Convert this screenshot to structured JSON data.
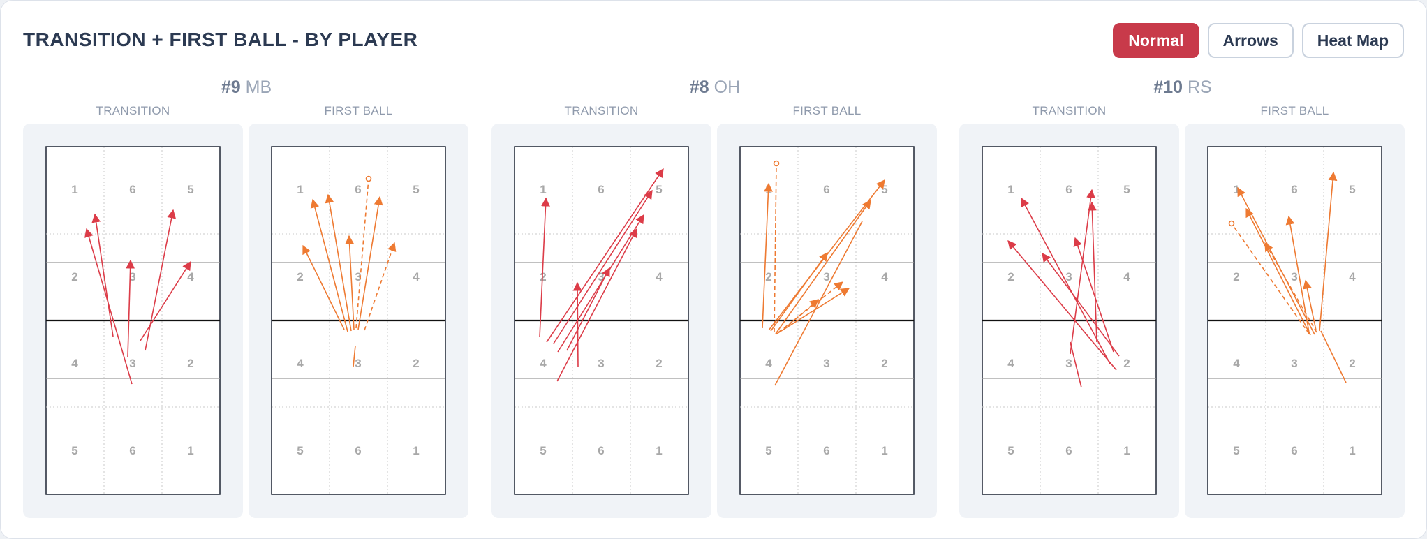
{
  "title": "TRANSITION + FIRST BALL - BY PLAYER",
  "view_toggle": {
    "options": [
      "Normal",
      "Arrows",
      "Heat Map"
    ],
    "active": "Normal",
    "active_color": "#c83a4a"
  },
  "colors": {
    "transition": "#dc3c48",
    "first_ball": "#ee7a32"
  },
  "court_zones": {
    "back_top": [
      "1",
      "6",
      "5"
    ],
    "front_top": [
      "2",
      "3",
      "4"
    ],
    "front_bottom": [
      "4",
      "3",
      "2"
    ],
    "back_bottom": [
      "5",
      "6",
      "1"
    ]
  },
  "players": [
    {
      "number": "#9",
      "position": "MB",
      "panels": [
        {
          "label": "TRANSITION",
          "type": "transition",
          "shots": [
            {
              "from": [
                123,
                340
              ],
              "to": [
                58,
                118
              ],
              "style": "solid",
              "end": "arrow"
            },
            {
              "from": [
                96,
                272
              ],
              "to": [
                70,
                97
              ],
              "style": "solid",
              "end": "arrow"
            },
            {
              "from": [
                117,
                301
              ],
              "to": [
                121,
                163
              ],
              "style": "solid",
              "end": "arrow"
            },
            {
              "from": [
                142,
                292
              ],
              "to": [
                182,
                91
              ],
              "style": "solid",
              "end": "arrow"
            },
            {
              "from": [
                135,
                278
              ],
              "to": [
                207,
                165
              ],
              "style": "solid",
              "end": "arrow"
            }
          ]
        },
        {
          "label": "FIRST BALL",
          "type": "first_ball",
          "shots": [
            {
              "from": [
                104,
                262
              ],
              "to": [
                45,
                142
              ],
              "style": "solid",
              "end": "arrow"
            },
            {
              "from": [
                109,
                265
              ],
              "to": [
                59,
                76
              ],
              "style": "solid",
              "end": "arrow"
            },
            {
              "from": [
                114,
                264
              ],
              "to": [
                81,
                69
              ],
              "style": "solid",
              "end": "arrow"
            },
            {
              "from": [
                118,
                262
              ],
              "to": [
                111,
                128
              ],
              "style": "solid",
              "end": "arrow"
            },
            {
              "from": [
                124,
                262
              ],
              "to": [
                155,
                72
              ],
              "style": "solid",
              "end": "arrow"
            },
            {
              "from": [
                133,
                263
              ],
              "to": [
                176,
                138
              ],
              "style": "dashed",
              "end": "arrow"
            },
            {
              "from": [
                121,
                260
              ],
              "to": [
                139,
                46
              ],
              "style": "dashed",
              "end": "circle"
            },
            {
              "from": [
                120,
                285
              ],
              "to": [
                117,
                315
              ],
              "style": "solid",
              "end": "none"
            }
          ]
        }
      ]
    },
    {
      "number": "#8",
      "position": "OH",
      "panels": [
        {
          "label": "TRANSITION",
          "type": "transition",
          "shots": [
            {
              "from": [
                36,
                273
              ],
              "to": [
                45,
                74
              ],
              "style": "solid",
              "end": "arrow"
            },
            {
              "from": [
                46,
                280
              ],
              "to": [
                213,
                32
              ],
              "style": "solid",
              "end": "arrow"
            },
            {
              "from": [
                56,
                282
              ],
              "to": [
                197,
                63
              ],
              "style": "solid",
              "end": "arrow"
            },
            {
              "from": [
                62,
                294
              ],
              "to": [
                185,
                98
              ],
              "style": "solid",
              "end": "arrow"
            },
            {
              "from": [
                75,
                292
              ],
              "to": [
                136,
                174
              ],
              "style": "solid",
              "end": "arrow"
            },
            {
              "from": [
                61,
                336
              ],
              "to": [
                175,
                118
              ],
              "style": "solid",
              "end": "arrow"
            },
            {
              "from": [
                91,
                316
              ],
              "to": [
                90,
                195
              ],
              "style": "solid",
              "end": "arrow"
            }
          ]
        },
        {
          "label": "FIRST BALL",
          "type": "first_ball",
          "shots": [
            {
              "from": [
                32,
                260
              ],
              "to": [
                41,
                53
              ],
              "style": "solid",
              "end": "arrow"
            },
            {
              "from": [
                41,
                263
              ],
              "to": [
                207,
                48
              ],
              "style": "solid",
              "end": "arrow"
            },
            {
              "from": [
                44,
                264
              ],
              "to": [
                125,
                152
              ],
              "style": "solid",
              "end": "arrow"
            },
            {
              "from": [
                51,
                268
              ],
              "to": [
                187,
                77
              ],
              "style": "solid",
              "end": "arrow"
            },
            {
              "from": [
                51,
                269
              ],
              "to": [
                156,
                203
              ],
              "style": "solid",
              "end": "arrow"
            },
            {
              "from": [
                55,
                266
              ],
              "to": [
                147,
                194
              ],
              "style": "dashed",
              "end": "arrow"
            },
            {
              "from": [
                61,
                263
              ],
              "to": [
                112,
                219
              ],
              "style": "dashed",
              "end": "arrow"
            },
            {
              "from": [
                49,
                266
              ],
              "to": [
                52,
                24
              ],
              "style": "dashed",
              "end": "circle"
            },
            {
              "from": [
                50,
                342
              ],
              "to": [
                175,
                107
              ],
              "style": "solid",
              "end": "none"
            }
          ]
        }
      ]
    },
    {
      "number": "#10",
      "position": "RS",
      "panels": [
        {
          "label": "TRANSITION",
          "type": "transition",
          "shots": [
            {
              "from": [
                183,
                311
              ],
              "to": [
                56,
                74
              ],
              "style": "solid",
              "end": "arrow"
            },
            {
              "from": [
                192,
                320
              ],
              "to": [
                37,
                135
              ],
              "style": "solid",
              "end": "arrow"
            },
            {
              "from": [
                196,
                300
              ],
              "to": [
                86,
                153
              ],
              "style": "solid",
              "end": "arrow"
            },
            {
              "from": [
                164,
                280
              ],
              "to": [
                157,
                80
              ],
              "style": "solid",
              "end": "arrow"
            },
            {
              "from": [
                188,
                294
              ],
              "to": [
                133,
                131
              ],
              "style": "solid",
              "end": "arrow"
            },
            {
              "from": [
                126,
                297
              ],
              "to": [
                157,
                62
              ],
              "style": "solid",
              "end": "arrow"
            },
            {
              "from": [
                126,
                280
              ],
              "to": [
                142,
                345
              ],
              "style": "solid",
              "end": "none"
            }
          ]
        },
        {
          "label": "FIRST BALL",
          "type": "first_ball",
          "shots": [
            {
              "from": [
                153,
                269
              ],
              "to": [
                43,
                59
              ],
              "style": "solid",
              "end": "arrow"
            },
            {
              "from": [
                147,
                270
              ],
              "to": [
                55,
                89
              ],
              "style": "solid",
              "end": "arrow"
            },
            {
              "from": [
                145,
                266
              ],
              "to": [
                116,
                100
              ],
              "style": "solid",
              "end": "arrow"
            },
            {
              "from": [
                160,
                264
              ],
              "to": [
                180,
                37
              ],
              "style": "solid",
              "end": "arrow"
            },
            {
              "from": [
                155,
                263
              ],
              "to": [
                140,
                192
              ],
              "style": "solid",
              "end": "arrow"
            },
            {
              "from": [
                156,
                266
              ],
              "to": [
                82,
                138
              ],
              "style": "dashed",
              "end": "arrow"
            },
            {
              "from": [
                145,
                268
              ],
              "to": [
                34,
                110
              ],
              "style": "dashed",
              "end": "circle"
            },
            {
              "from": [
                162,
                264
              ],
              "to": [
                198,
                338
              ],
              "style": "solid",
              "end": "none"
            }
          ]
        }
      ]
    }
  ]
}
